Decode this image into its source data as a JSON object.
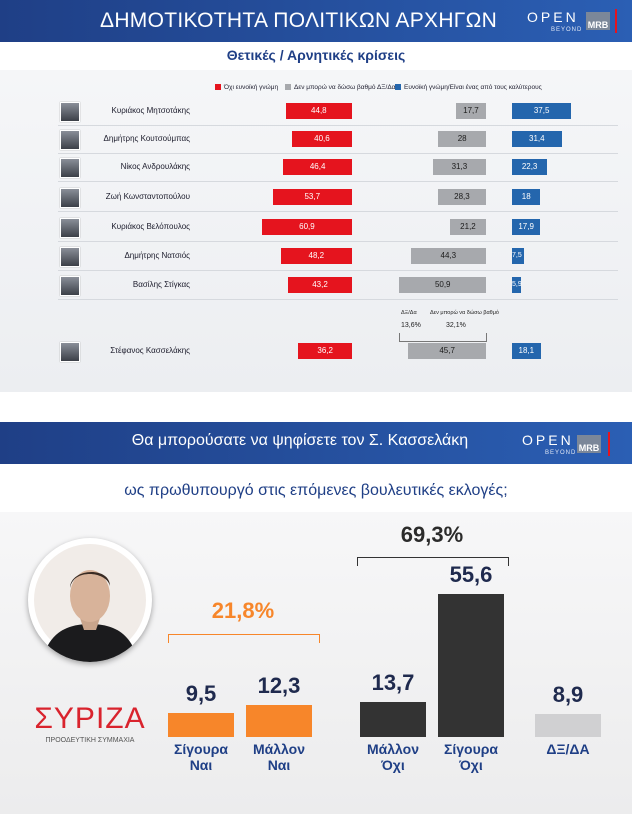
{
  "panel1": {
    "title": "ΔΗΜΟΤΙΚΟΤΗΤΑ ΠΟΛΙΤΙΚΩΝ ΑΡΧΗΓΩΝ",
    "brand": "OPEN",
    "brand_sub": "BEYOND",
    "mrb": "MRB",
    "subtitle": "Θετικές / Αρνητικές κρίσεις",
    "colors": {
      "negative": "#e5141e",
      "dk": "#a7a9ad",
      "positive": "#2466ad"
    }
  },
  "panel2": {
    "title": "Θα μπορούσατε να ψηφίσετε τον Σ. Κασσελάκη",
    "brand": "OPEN",
    "brand_sub": "BEYOND",
    "mrb": "MRB",
    "subtitle": "ως πρωθυπουργό στις επόμενες βουλευτικές εκλογές;",
    "logo_text": "ΣΥΡΙΖΑ",
    "logo_sub": "ΠΡΟΟΔΕΥΤΙΚΗ ΣΥΜΜΑΧΙΑ",
    "colors": {
      "yes": "#f7862a",
      "no": "#333333",
      "dk": "#d0d0d2",
      "label": "#1f3f86"
    }
  },
  "chart_data": [
    {
      "type": "bar",
      "title": "ΔΗΜΟΤΙΚΟΤΗΤΑ ΠΟΛΙΤΙΚΩΝ ΑΡΧΗΓΩΝ",
      "subtitle": "Θετικές / Αρνητικές κρίσεις",
      "legend": [
        "Όχι ευνοϊκή γνώμη",
        "Δεν μπορώ να δώσω βαθμό ΔΞ/Δα",
        "Ευνοϊκή γνώμη/Είναι ένας από τους καλύτερους"
      ],
      "legend_position": "top",
      "categories": [
        "Κυριάκος Μητσοτάκης",
        "Δημήτρης Κουτσούμπας",
        "Νίκος Ανδρουλάκης",
        "Ζωή Κωνσταντοπούλου",
        "Κυριάκος Βελόπουλος",
        "Δημήτρης Νατσιός",
        "Βασίλης Στίγκας",
        "Στέφανος Κασσελάκης"
      ],
      "series": [
        {
          "name": "Όχι ευνοϊκή γνώμη",
          "values": [
            44.8,
            40.6,
            46.4,
            53.7,
            60.9,
            48.2,
            43.2,
            36.2
          ]
        },
        {
          "name": "Δεν μπορώ να δώσω βαθμό ΔΞ/Δα",
          "values": [
            17.7,
            28,
            31.3,
            28.3,
            21.2,
            44.3,
            50.9,
            45.7
          ]
        },
        {
          "name": "Ευνοϊκή γνώμη/Είναι ένας από τους καλύτερους",
          "values": [
            37.5,
            31.4,
            22.3,
            18,
            17.9,
            7.5,
            5.9,
            18.1
          ]
        }
      ],
      "labels": [
        "44,8",
        "40,6",
        "46,4",
        "53,7",
        "60,9",
        "48,2",
        "43,2",
        "36,2",
        "17,7",
        "28",
        "31,3",
        "28,3",
        "21,2",
        "44,3",
        "50,9",
        "45,7",
        "37,5",
        "31,4",
        "22,3",
        "18",
        "17,9",
        "7,5",
        "5,9",
        "18,1"
      ],
      "annotation": {
        "label_dxda": "ΔΞ/Δα",
        "label_cant": "Δεν μπορώ να δώσω βαθμό",
        "value_dxda": "13,6%",
        "value_cant": "32,1%"
      }
    },
    {
      "type": "bar",
      "title": "Θα μπορούσατε να ψηφίσετε τον Σ. Κασσελάκη",
      "subtitle": "ως πρωθυπουργό στις επόμενες βουλευτικές εκλογές;",
      "categories": [
        "Σίγουρα Ναι",
        "Μάλλον Ναι",
        "Μάλλον Όχι",
        "Σίγουρα Όχι",
        "ΔΞ/ΔΑ"
      ],
      "category_lines": [
        [
          "Σίγουρα",
          "Ναι"
        ],
        [
          "Μάλλον",
          "Ναι"
        ],
        [
          "Μάλλον",
          "Όχι"
        ],
        [
          "Σίγουρα",
          "Όχι"
        ],
        [
          "ΔΞ/ΔΑ"
        ]
      ],
      "values": [
        9.5,
        12.3,
        13.7,
        55.6,
        8.9
      ],
      "labels": [
        "9,5",
        "12,3",
        "13,7",
        "55,6",
        "8,9"
      ],
      "groups": [
        {
          "label": "21,8%",
          "value": 21.8
        },
        {
          "label": "69,3%",
          "value": 69.3
        }
      ]
    }
  ]
}
